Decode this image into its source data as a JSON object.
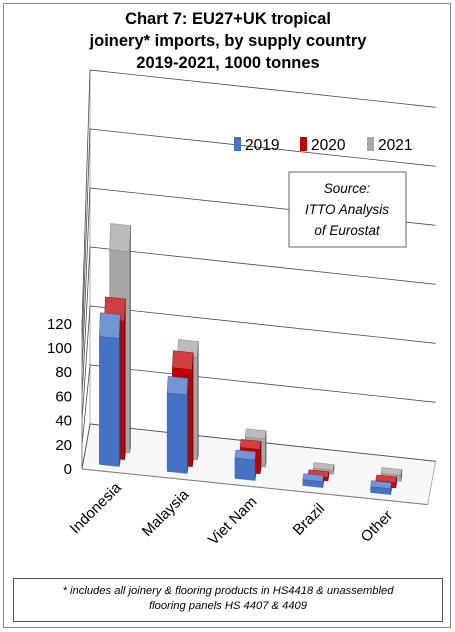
{
  "chart_data": {
    "type": "bar",
    "title_lines": [
      "Chart 7: EU27+UK tropical",
      "joinery* imports, by supply country",
      "2019-2021, 1000 tonnes"
    ],
    "categories": [
      "Indonesia",
      "Malaysia",
      "Viet Nam",
      "Brazil",
      "Other"
    ],
    "series": [
      {
        "name": "2019",
        "values": [
          88,
          54,
          14,
          4,
          4
        ],
        "color": "#4472C4"
      },
      {
        "name": "2020",
        "values": [
          80,
          56,
          14,
          2,
          3
        ],
        "color": "#C00000"
      },
      {
        "name": "2021",
        "values": [
          100,
          51,
          14,
          2,
          3
        ],
        "color": "#A6A6A6"
      }
    ],
    "yticks": [
      "0",
      "20",
      "40",
      "60",
      "80",
      "100",
      "120"
    ],
    "ylim": [
      0,
      120
    ],
    "grid": true,
    "legend_position": "top-right",
    "source_lines": [
      "Source:",
      "ITTO Analysis",
      "of Eurostat"
    ],
    "footnote_lines": [
      "* includes all joinery & flooring products in HS4418 & unassembled",
      "flooring panels HS 4407 & 4409"
    ]
  }
}
